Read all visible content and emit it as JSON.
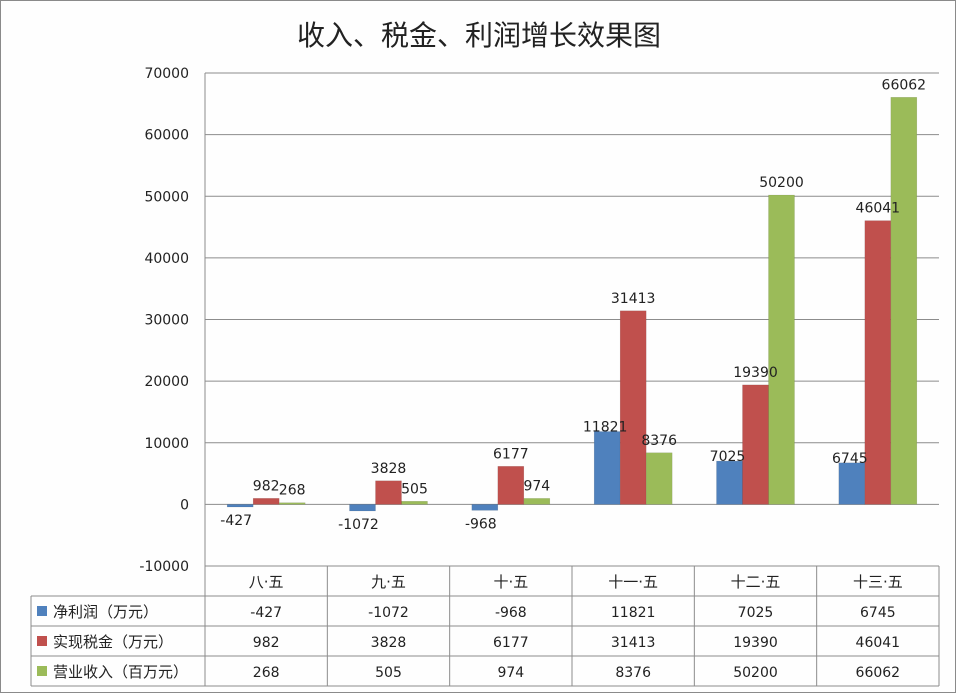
{
  "chart_data": {
    "type": "bar",
    "title": "收入、税金、利润增长效果图",
    "categories": [
      "八·五",
      "九·五",
      "十·五",
      "十一·五",
      "十二·五",
      "十三·五"
    ],
    "ylim": [
      -10000,
      70000
    ],
    "yticks": [
      -10000,
      0,
      10000,
      20000,
      30000,
      40000,
      50000,
      60000,
      70000
    ],
    "grid": true,
    "legend": "data-table-left",
    "series": [
      {
        "name": "净利润（万元）",
        "color": "#4f81bd",
        "values": [
          -427,
          -1072,
          -968,
          11821,
          7025,
          6745
        ]
      },
      {
        "name": "实现税金（万元）",
        "color": "#c0504d",
        "values": [
          982,
          3828,
          6177,
          31413,
          19390,
          46041
        ]
      },
      {
        "name": "营业收入（百万元）",
        "color": "#9bbb59",
        "values": [
          268,
          505,
          974,
          8376,
          50200,
          66062
        ]
      }
    ]
  }
}
